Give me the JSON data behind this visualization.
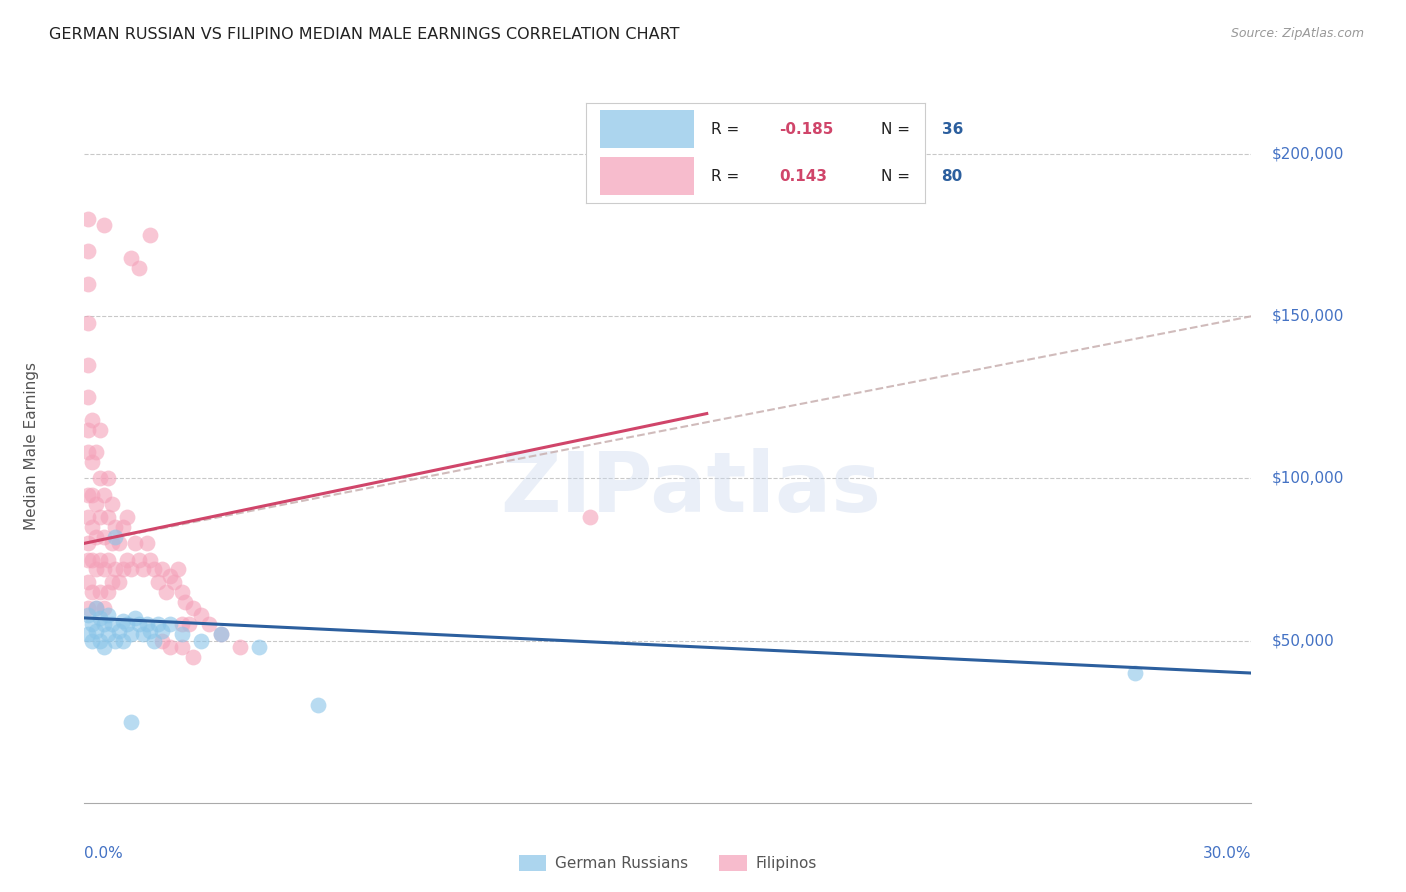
{
  "title": "GERMAN RUSSIAN VS FILIPINO MEDIAN MALE EARNINGS CORRELATION CHART",
  "source": "Source: ZipAtlas.com",
  "ylabel": "Median Male Earnings",
  "xlim": [
    0.0,
    0.3
  ],
  "ylim": [
    0,
    220000
  ],
  "group1_label": "German Russians",
  "group2_label": "Filipinos",
  "group1_color": "#89c4e8",
  "group2_color": "#f4a0b8",
  "watermark": "ZIPatlas",
  "background_color": "#ffffff",
  "grid_color": "#bbbbbb",
  "axis_label_color": "#4472c4",
  "title_color": "#222222",
  "trendline_dashed_color": "#c8b0b0",
  "trendline_blue_color": "#2c5f9e",
  "trendline_pink_color": "#d0456a",
  "blue_trend_x": [
    0.0,
    0.3
  ],
  "blue_trend_y": [
    57000,
    40000
  ],
  "pink_trend_x": [
    0.0,
    0.16
  ],
  "pink_trend_y": [
    80000,
    120000
  ],
  "dashed_trend_x": [
    0.0,
    0.3
  ],
  "dashed_trend_y": [
    80000,
    150000
  ],
  "group1_scatter": [
    [
      0.001,
      58000
    ],
    [
      0.001,
      52000
    ],
    [
      0.002,
      55000
    ],
    [
      0.002,
      50000
    ],
    [
      0.003,
      60000
    ],
    [
      0.003,
      53000
    ],
    [
      0.004,
      57000
    ],
    [
      0.004,
      50000
    ],
    [
      0.005,
      55000
    ],
    [
      0.005,
      48000
    ],
    [
      0.006,
      58000
    ],
    [
      0.006,
      52000
    ],
    [
      0.007,
      55000
    ],
    [
      0.008,
      82000
    ],
    [
      0.008,
      50000
    ],
    [
      0.009,
      53000
    ],
    [
      0.01,
      56000
    ],
    [
      0.01,
      50000
    ],
    [
      0.011,
      55000
    ],
    [
      0.012,
      52000
    ],
    [
      0.013,
      57000
    ],
    [
      0.014,
      55000
    ],
    [
      0.015,
      52000
    ],
    [
      0.016,
      55000
    ],
    [
      0.017,
      53000
    ],
    [
      0.018,
      50000
    ],
    [
      0.019,
      55000
    ],
    [
      0.02,
      53000
    ],
    [
      0.022,
      55000
    ],
    [
      0.025,
      52000
    ],
    [
      0.03,
      50000
    ],
    [
      0.035,
      52000
    ],
    [
      0.27,
      40000
    ],
    [
      0.06,
      30000
    ],
    [
      0.045,
      48000
    ],
    [
      0.012,
      25000
    ]
  ],
  "group2_scatter": [
    [
      0.001,
      60000
    ],
    [
      0.001,
      68000
    ],
    [
      0.001,
      75000
    ],
    [
      0.001,
      80000
    ],
    [
      0.001,
      88000
    ],
    [
      0.001,
      95000
    ],
    [
      0.001,
      108000
    ],
    [
      0.001,
      115000
    ],
    [
      0.001,
      125000
    ],
    [
      0.001,
      135000
    ],
    [
      0.001,
      148000
    ],
    [
      0.001,
      160000
    ],
    [
      0.001,
      170000
    ],
    [
      0.001,
      180000
    ],
    [
      0.002,
      65000
    ],
    [
      0.002,
      75000
    ],
    [
      0.002,
      85000
    ],
    [
      0.002,
      95000
    ],
    [
      0.002,
      105000
    ],
    [
      0.002,
      118000
    ],
    [
      0.003,
      60000
    ],
    [
      0.003,
      72000
    ],
    [
      0.003,
      82000
    ],
    [
      0.003,
      92000
    ],
    [
      0.003,
      108000
    ],
    [
      0.004,
      65000
    ],
    [
      0.004,
      75000
    ],
    [
      0.004,
      88000
    ],
    [
      0.004,
      100000
    ],
    [
      0.004,
      115000
    ],
    [
      0.005,
      60000
    ],
    [
      0.005,
      72000
    ],
    [
      0.005,
      82000
    ],
    [
      0.005,
      95000
    ],
    [
      0.006,
      65000
    ],
    [
      0.006,
      75000
    ],
    [
      0.006,
      88000
    ],
    [
      0.006,
      100000
    ],
    [
      0.007,
      68000
    ],
    [
      0.007,
      80000
    ],
    [
      0.007,
      92000
    ],
    [
      0.008,
      72000
    ],
    [
      0.008,
      85000
    ],
    [
      0.009,
      68000
    ],
    [
      0.009,
      80000
    ],
    [
      0.01,
      72000
    ],
    [
      0.01,
      85000
    ],
    [
      0.011,
      75000
    ],
    [
      0.011,
      88000
    ],
    [
      0.012,
      72000
    ],
    [
      0.012,
      168000
    ],
    [
      0.013,
      80000
    ],
    [
      0.014,
      75000
    ],
    [
      0.015,
      72000
    ],
    [
      0.016,
      80000
    ],
    [
      0.017,
      75000
    ],
    [
      0.018,
      72000
    ],
    [
      0.019,
      68000
    ],
    [
      0.02,
      72000
    ],
    [
      0.021,
      65000
    ],
    [
      0.022,
      70000
    ],
    [
      0.023,
      68000
    ],
    [
      0.024,
      72000
    ],
    [
      0.025,
      65000
    ],
    [
      0.025,
      48000
    ],
    [
      0.026,
      62000
    ],
    [
      0.027,
      55000
    ],
    [
      0.028,
      60000
    ],
    [
      0.03,
      58000
    ],
    [
      0.032,
      55000
    ],
    [
      0.035,
      52000
    ],
    [
      0.04,
      48000
    ],
    [
      0.017,
      175000
    ],
    [
      0.005,
      178000
    ],
    [
      0.014,
      165000
    ],
    [
      0.13,
      88000
    ],
    [
      0.02,
      50000
    ],
    [
      0.022,
      48000
    ],
    [
      0.025,
      55000
    ],
    [
      0.028,
      45000
    ]
  ]
}
